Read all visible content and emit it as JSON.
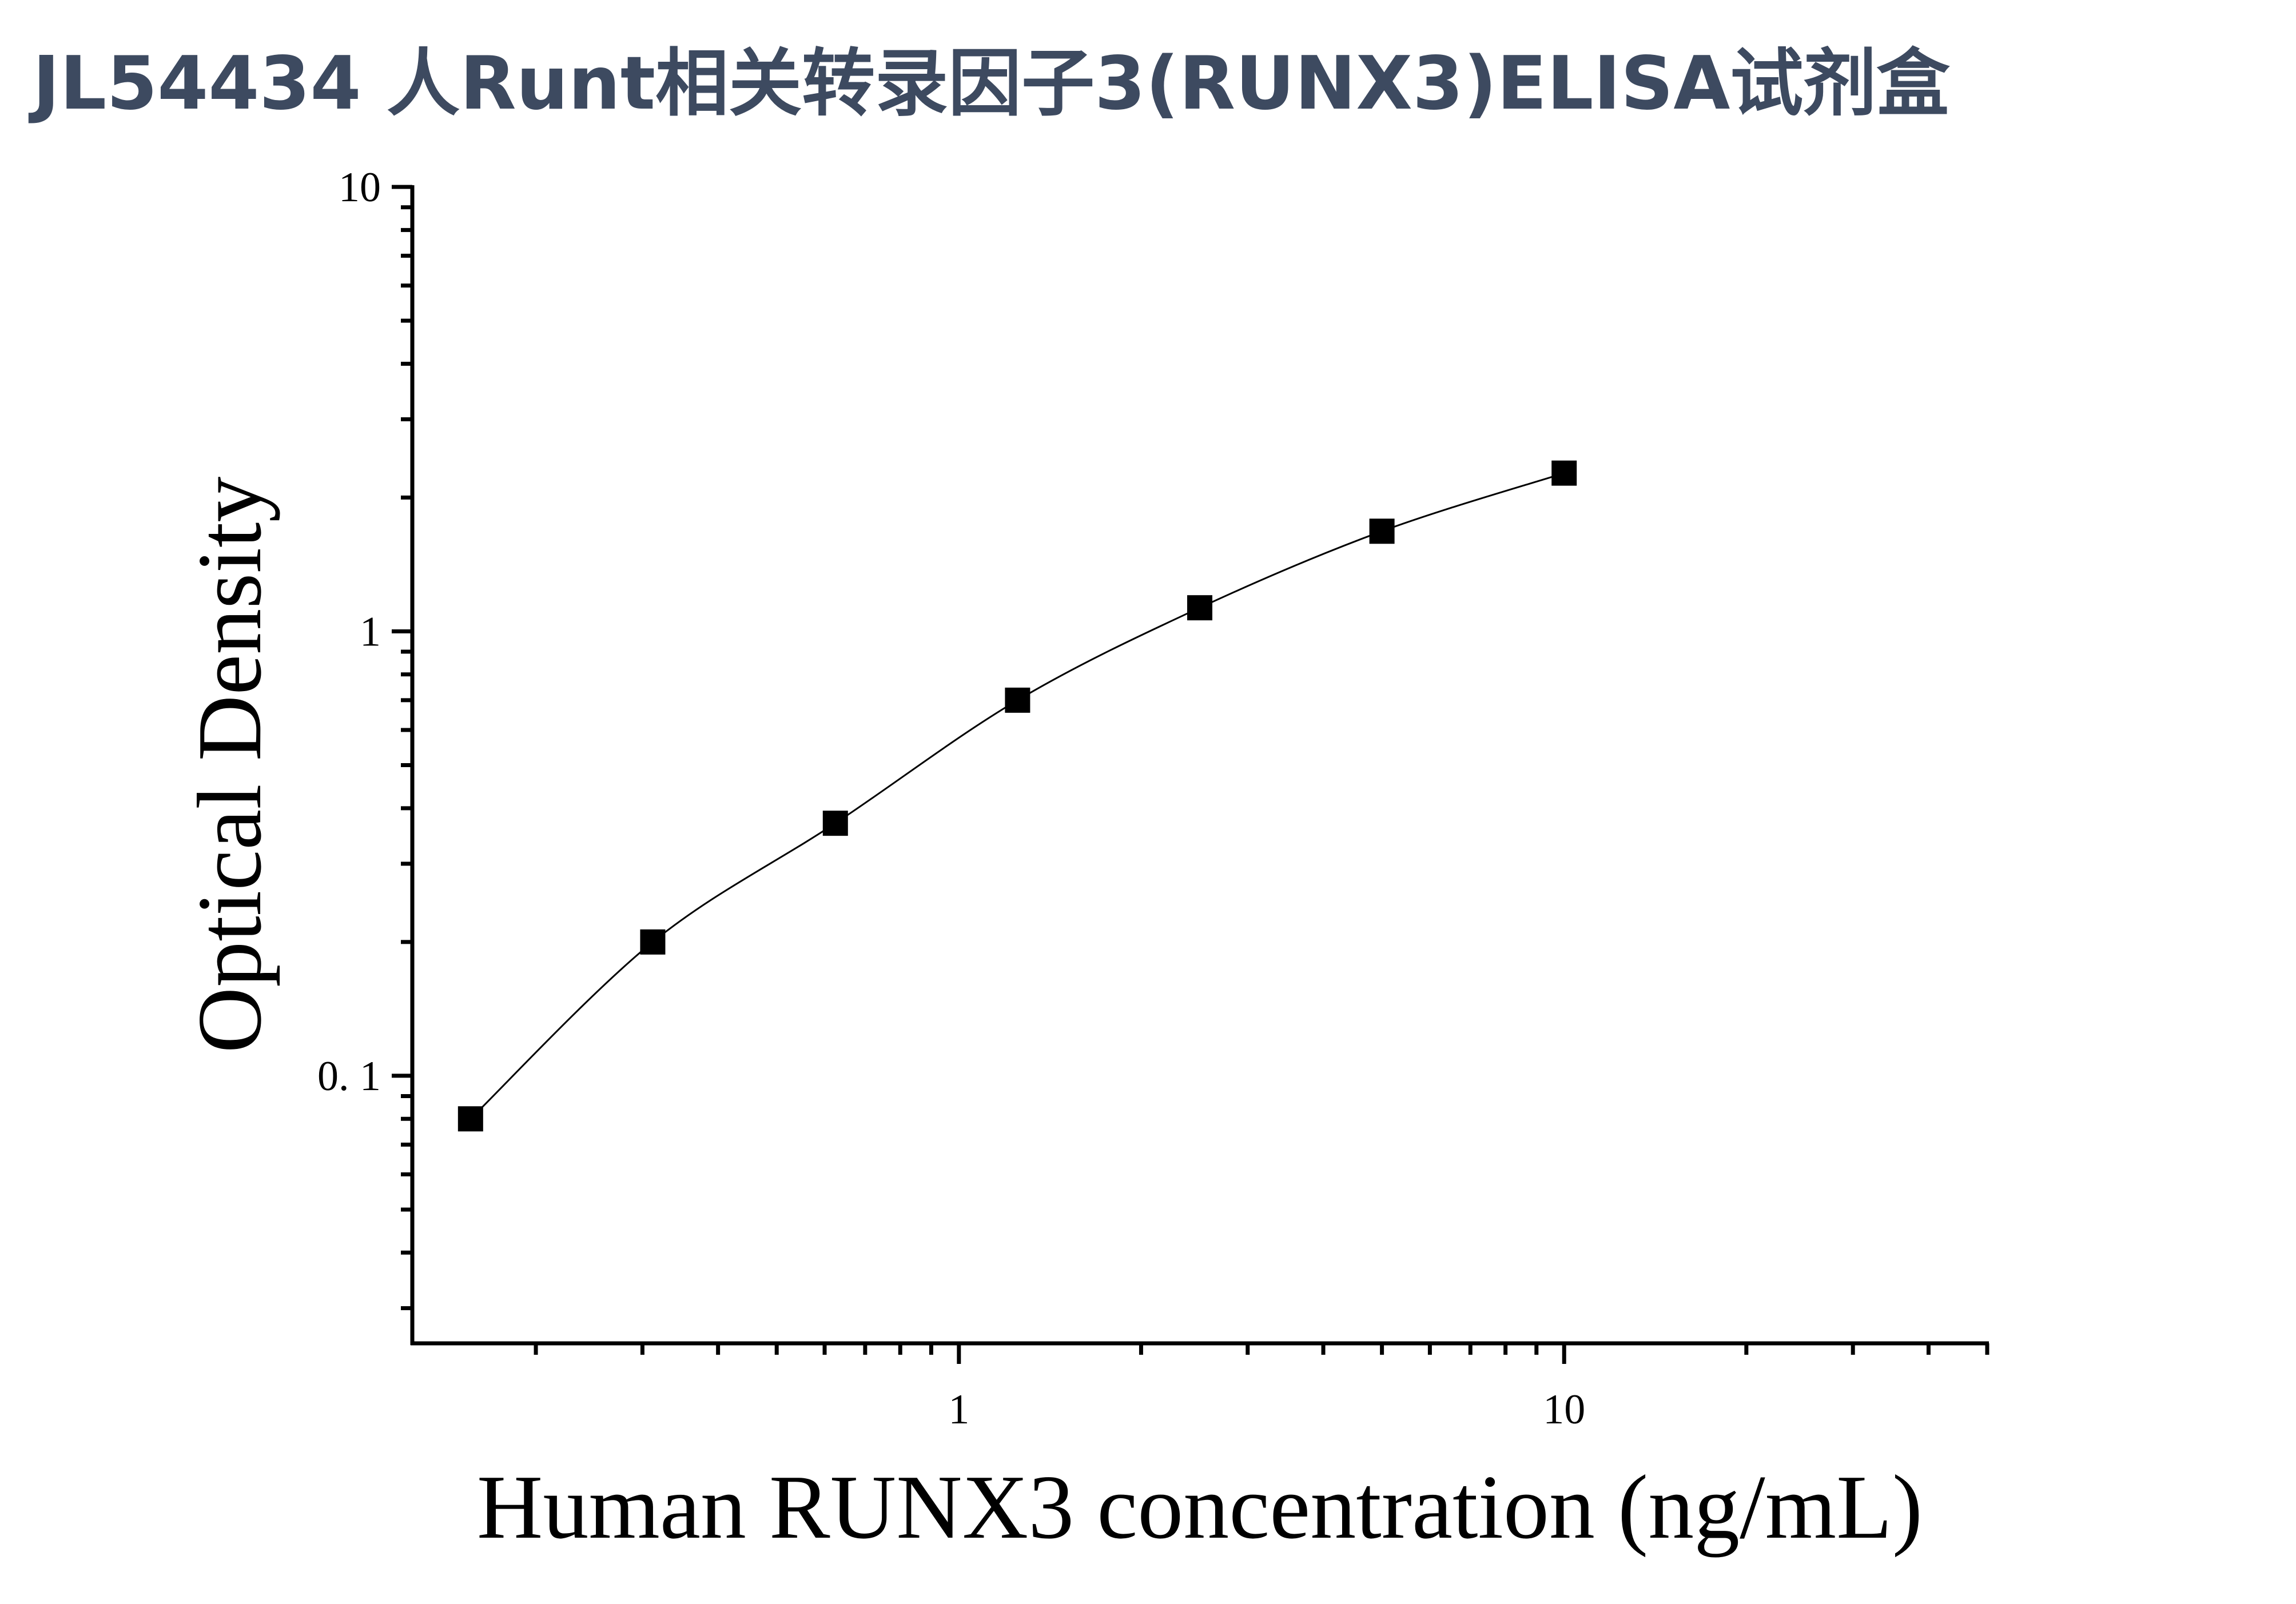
{
  "chart_data": {
    "type": "scatter",
    "title": "JL54434 人Runt相关转录因子3(RUNX3)ELISA试剂盒",
    "x_label": "Human RUNX3 concentration (ng/mL)",
    "y_label": "Optical Density",
    "x": [
      0.156,
      0.312,
      0.625,
      1.25,
      2.5,
      5,
      10
    ],
    "series": [
      {
        "color": "#000000",
        "values": [
          0.08,
          0.2,
          0.37,
          0.7,
          1.13,
          1.68,
          2.27
        ]
      }
    ],
    "xlim": [
      0.125,
      50
    ],
    "ylim": [
      0.025,
      10
    ],
    "xscale": "log",
    "yscale": "log",
    "xticks": [
      1,
      10
    ],
    "yticks": [
      {
        "value": 0.1,
        "label": "0. 1"
      },
      1,
      10
    ],
    "xminorticks": [
      0.2,
      0.3,
      0.4,
      0.5,
      0.6,
      0.7,
      0.8,
      0.9,
      2,
      3,
      4,
      5,
      6,
      7,
      8,
      9,
      20,
      30,
      40,
      50
    ],
    "yminorticks": [
      0.03,
      0.04,
      0.05,
      0.06,
      0.07,
      0.08,
      0.09,
      0.2,
      0.3,
      0.4,
      0.5,
      0.6,
      0.7,
      0.8,
      0.9,
      2,
      3,
      4,
      5,
      6,
      7,
      8,
      9
    ],
    "fit_curve": true
  }
}
